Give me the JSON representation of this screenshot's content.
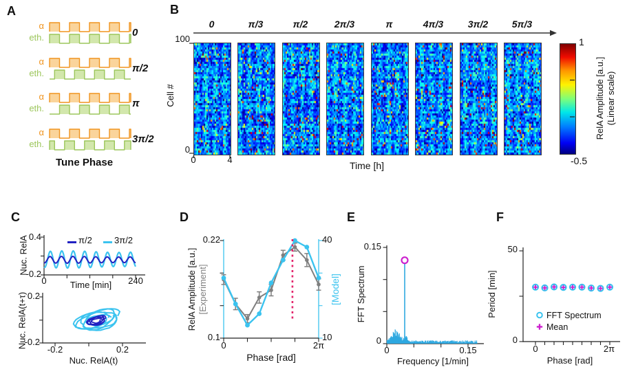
{
  "colors": {
    "orange": "#F0941F",
    "orange_fill": "#FAD49B",
    "green": "#9CC65B",
    "green_fill": "#D2E7AC",
    "navy": "#2222C2",
    "cyan": "#3BC3EF",
    "spectrum": "#2EA8E0",
    "gray": "#7F7F7F",
    "magenta": "#CC1FCE",
    "pink": "#E3256B",
    "axis": "#222222",
    "text": "#111111"
  },
  "panelA": {
    "letter": "A",
    "alpha": "α",
    "eth": "eth.",
    "caption": "Tune Phase"
  },
  "panelB": {
    "letter": "B",
    "phases": [
      "0",
      "π/3",
      "π/2",
      "2π/3",
      "π",
      "4π/3",
      "3π/2",
      "5π/3"
    ],
    "cell_axis": {
      "label": "Cell #",
      "max": "100",
      "min": "0"
    },
    "time_axis": {
      "label": "Time [h]",
      "t0": "0",
      "t1": "4"
    },
    "colorbar": {
      "max": "1",
      "min": "-0.5",
      "title": "RelA Amplitude [a.u.]",
      "subtitle": "(Linear scale)"
    }
  },
  "panelC": {
    "letter": "C",
    "top": {
      "ylabel": "Nuc. RelA",
      "xlabel": "Time [min]",
      "ytick_top": "0.4",
      "ytick_bottom": "-0.2",
      "xtick_left": "0",
      "xtick_right": "240",
      "legend": [
        {
          "label": "π/2"
        },
        {
          "label": "3π/2"
        }
      ]
    },
    "bottom": {
      "ylabel": "Nuc. RelA(t+τ)",
      "xlabel": "Nuc. RelA(t)",
      "ytick_top": "0.2",
      "ytick_bottom": "-0.2",
      "xtick_left": "-0.2",
      "xtick_right": "0.2"
    }
  },
  "panelD": {
    "letter": "D",
    "ylabel_left": "RelA Amplitude [a.u.]",
    "ylabel_left_sub": "[Experiment]",
    "ylabel_right": "[Model]",
    "xlabel": "Phase [rad]",
    "ytick_left_top": "0.22",
    "ytick_left_bottom": "0.1",
    "ytick_right_top": "40",
    "ytick_right_bottom": "10",
    "xtick_left": "0",
    "xtick_right": "2π"
  },
  "panelE": {
    "letter": "E",
    "ylabel": "FFT Spectrum",
    "xlabel": "Frequency [1/min]",
    "ytick_top": "0.15",
    "ytick_bottom": "0",
    "xtick_left": "0",
    "xtick_right": "0.15"
  },
  "panelF": {
    "letter": "F",
    "ylabel": "Period [min]",
    "xlabel": "Phase [rad]",
    "ytick_top": "50",
    "ytick_bottom": "0",
    "xtick_left": "0",
    "xtick_right": "2π",
    "legend": [
      {
        "label": "FFT Spectrum"
      },
      {
        "label": "Mean"
      }
    ]
  },
  "chart_data": [
    {
      "id": "A",
      "type": "diagram",
      "subtype": "pulse-trains",
      "pulses_per_train": 4,
      "duty_cycle": 0.5,
      "signals": [
        "α",
        "eth."
      ],
      "rows": [
        {
          "phase": "0",
          "green_shift": 0
        },
        {
          "phase": "π/2",
          "green_shift": 0.25
        },
        {
          "phase": "π",
          "green_shift": 0.5
        },
        {
          "phase": "3π/2",
          "green_shift": 0.75
        }
      ],
      "caption": "Tune Phase"
    },
    {
      "id": "B",
      "type": "heatmap",
      "n_panels": 8,
      "phase_labels": [
        "0",
        "π/3",
        "π/2",
        "2π/3",
        "π",
        "4π/3",
        "3π/2",
        "5π/3"
      ],
      "n_cells": 100,
      "time_range_h": [
        0,
        4
      ],
      "value_range": [
        -0.5,
        1
      ],
      "colormap": "jet",
      "ylabel": "Cell #",
      "xlabel": "Time [h]",
      "colorbar_label": "RelA Amplitude [a.u.] (Linear scale)"
    },
    {
      "id": "C-top",
      "type": "line",
      "xlabel": "Time [min]",
      "ylabel": "Nuc. RelA",
      "xlim": [
        0,
        240
      ],
      "ylim": [
        -0.2,
        0.4
      ],
      "series": [
        {
          "name": "3π/2",
          "color": "cyan",
          "period_min": 30,
          "amplitude": 0.125,
          "mean": 0.045,
          "phase_offset": -1.9
        },
        {
          "name": "π/2",
          "color": "navy",
          "period_min": 30,
          "amplitude": 0.05,
          "mean": 0.04,
          "phase_offset": -1.7
        }
      ]
    },
    {
      "id": "C-bottom",
      "type": "phase-portrait",
      "xlabel": "Nuc. RelA(t)",
      "ylabel": "Nuc. RelA(t+τ)",
      "xlim": [
        -0.2,
        0.2
      ],
      "ylim": [
        -0.2,
        0.2
      ],
      "series": [
        {
          "name": "3π/2",
          "color": "cyan",
          "radius_max": 0.125,
          "center": [
            0.05,
            0
          ],
          "squish": 0.75
        },
        {
          "name": "π/2",
          "color": "navy",
          "radius_max": 0.052,
          "center": [
            0.045,
            -0.005
          ],
          "squish": 0.8
        }
      ]
    },
    {
      "id": "D",
      "type": "line",
      "xlabel": "Phase [rad]",
      "x_rad": [
        0,
        0.785,
        1.571,
        2.356,
        3.142,
        3.927,
        4.712,
        5.498,
        6.283
      ],
      "left_axis": {
        "label": "RelA Amplitude [a.u.] [Experiment]",
        "lim": [
          0.1,
          0.22
        ]
      },
      "right_axis": {
        "label": "[Model]",
        "lim": [
          10,
          40
        ]
      },
      "series": [
        {
          "name": "Experiment",
          "color": "gray",
          "axis": "left",
          "values": [
            0.172,
            0.142,
            0.124,
            0.15,
            0.159,
            0.202,
            0.212,
            0.196,
            0.166
          ],
          "errors": [
            0.006,
            0.007,
            0.005,
            0.007,
            0.007,
            0.006,
            0.005,
            0.008,
            0.007
          ]
        },
        {
          "name": "Model",
          "color": "cyan",
          "axis": "right",
          "values": [
            28.5,
            20.5,
            14.0,
            17.5,
            27.0,
            34.0,
            40.0,
            38.0,
            28.5
          ]
        }
      ],
      "vline": {
        "x_rad": 4.55,
        "color": "pink",
        "style": "dashed"
      }
    },
    {
      "id": "E",
      "type": "line",
      "xlabel": "Frequency [1/min]",
      "ylabel": "FFT Spectrum",
      "xlim": [
        0,
        0.15
      ],
      "ylim": [
        0,
        0.15
      ],
      "peak": {
        "frequency_per_min": 0.033,
        "amplitude": 0.13,
        "marker": "magenta-open-circle"
      },
      "noise_floor": 0.004
    },
    {
      "id": "F",
      "type": "scatter",
      "xlabel": "Phase [rad]",
      "ylabel": "Period [min]",
      "xlim": [
        0,
        6.283
      ],
      "ylim": [
        0,
        50
      ],
      "x_rad": [
        0,
        0.785,
        1.571,
        2.356,
        3.142,
        3.927,
        4.712,
        5.498,
        6.283
      ],
      "series": [
        {
          "name": "FFT Spectrum",
          "marker": "circle",
          "color": "cyan",
          "values": [
            30,
            29.6,
            30.1,
            29.9,
            30,
            30,
            29.5,
            29.3,
            30
          ]
        },
        {
          "name": "Mean",
          "marker": "plus",
          "color": "magenta",
          "values": [
            30,
            29.6,
            30.1,
            29.9,
            30,
            30,
            29.5,
            29.3,
            30
          ]
        }
      ]
    }
  ]
}
